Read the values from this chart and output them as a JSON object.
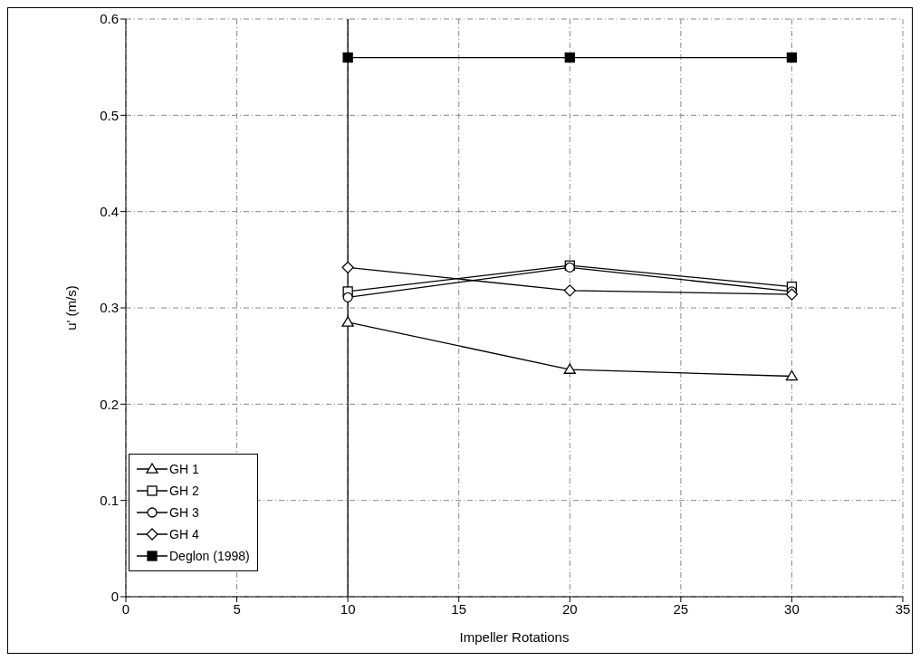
{
  "chart_data": {
    "type": "line",
    "xlabel": "Impeller Rotations",
    "ylabel": "u' (m/s)",
    "x": [
      10,
      20,
      30
    ],
    "series": [
      {
        "name": "GH 1",
        "color": "#000000",
        "marker": "triangle",
        "values": [
          0.285,
          0.236,
          0.229
        ]
      },
      {
        "name": "GH 2",
        "color": "#000000",
        "marker": "square",
        "values": [
          0.317,
          0.344,
          0.322
        ]
      },
      {
        "name": "GH 3",
        "color": "#000000",
        "marker": "circle",
        "values": [
          0.311,
          0.342,
          0.317
        ]
      },
      {
        "name": "GH 4",
        "color": "#000000",
        "marker": "diamond",
        "values": [
          0.342,
          0.318,
          0.314
        ]
      },
      {
        "name": "Deglon (1998)",
        "color": "#000000",
        "colors": [
          "#000000",
          "#000000",
          "#000000"
        ],
        "marker": "square",
        "values": [
          0.56,
          0.56,
          0.56
        ]
      }
    ],
    "xlim": [
      0,
      35
    ],
    "xticks": [
      0,
      5,
      10,
      15,
      20,
      25,
      30,
      35
    ],
    "ylim": [
      0,
      0.6
    ],
    "yticks": [
      0,
      0.1,
      0.2,
      0.3,
      0.4,
      0.5,
      0.6
    ],
    "ref_lines": [
      {
        "axis": "x",
        "value": 10,
        "color": "#000000"
      }
    ],
    "grid": true,
    "legend": "bottom left"
  }
}
